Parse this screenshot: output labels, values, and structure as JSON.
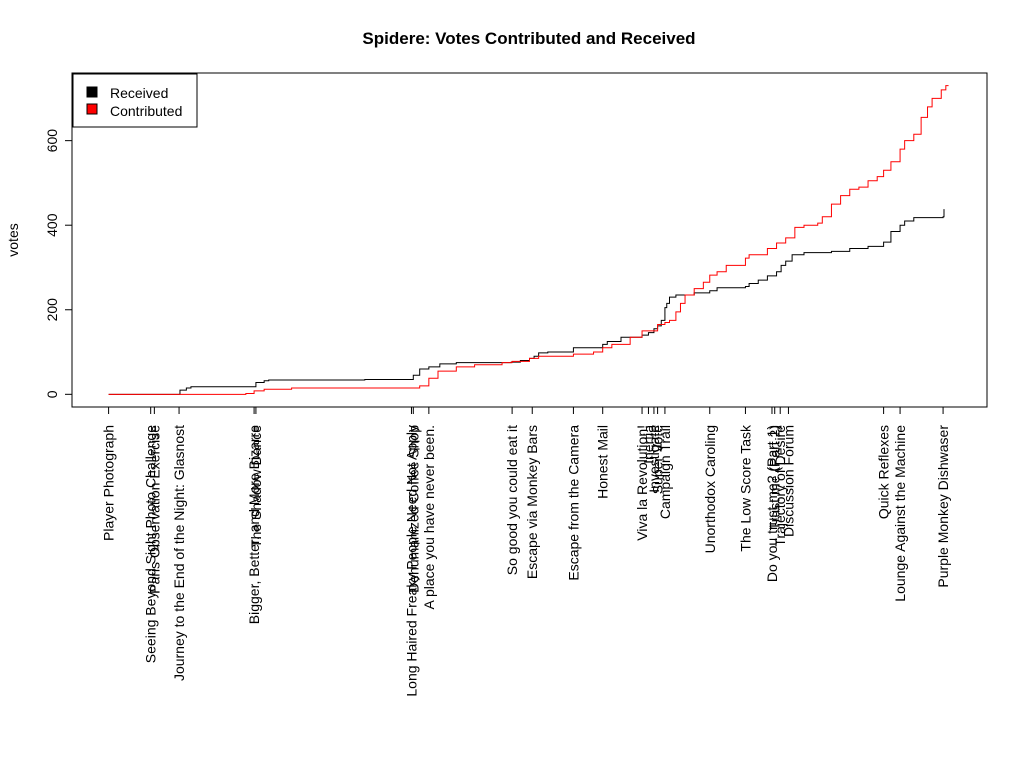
{
  "chart_data": {
    "type": "line",
    "title": "Spidere: Votes Contributed and Received",
    "xlabel": "",
    "ylabel": "votes",
    "ylim": [
      -30,
      760
    ],
    "xlim": [
      0,
      1000
    ],
    "yticks": [
      0,
      200,
      400,
      600
    ],
    "legend": {
      "position": "top-left",
      "entries": [
        {
          "label": "Received",
          "color": "#000000"
        },
        {
          "label": "Contributed",
          "color": "#ff0000"
        }
      ]
    },
    "x_ticks": [
      {
        "x": 40,
        "label": "Player Photograph"
      },
      {
        "x": 86,
        "label": "Seeing Beyond Sight Photo Challenge"
      },
      {
        "x": 90,
        "label": "Paris Observation Exercise"
      },
      {
        "x": 117,
        "label": "Journey to the End of the Night: Glasnost"
      },
      {
        "x": 199,
        "label": "Bigger, Better, and More Bizarre"
      },
      {
        "x": 201,
        "label": "The Shadow Dance"
      },
      {
        "x": 371,
        "label": "Long Haired Freaky People Need Not Apply"
      },
      {
        "x": 373,
        "label": "Dehumanized Coffee Shop"
      },
      {
        "x": 390,
        "label": "A place you have never been."
      },
      {
        "x": 481,
        "label": "So good you could eat it"
      },
      {
        "x": 503,
        "label": "Escape via Monkey Bars"
      },
      {
        "x": 548,
        "label": "Escape from the Camera"
      },
      {
        "x": 580,
        "label": "Honest Mail"
      },
      {
        "x": 623,
        "label": "Viva la Revolution!"
      },
      {
        "x": 630,
        "label": "Inertia"
      },
      {
        "x": 636,
        "label": "Investigate"
      },
      {
        "x": 640,
        "label": "Super Vote"
      },
      {
        "x": 648,
        "label": "Campaign Trail"
      },
      {
        "x": 697,
        "label": "Unorthodox Caroling"
      },
      {
        "x": 736,
        "label": "The Low Score Task"
      },
      {
        "x": 765,
        "label": "Do you trust me? (Part 1)"
      },
      {
        "x": 768,
        "label": "Trust me (Part 2)"
      },
      {
        "x": 774,
        "label": "Trajectory of Desire"
      },
      {
        "x": 783,
        "label": "Discussion Forum"
      },
      {
        "x": 887,
        "label": "Quick Reflexes"
      },
      {
        "x": 905,
        "label": "Lounge Against the Machine"
      },
      {
        "x": 952,
        "label": "Purple Monkey Dishwaser"
      }
    ],
    "series": [
      {
        "name": "Received",
        "color": "#000000",
        "points": [
          [
            40,
            0
          ],
          [
            86,
            0
          ],
          [
            117,
            0
          ],
          [
            118,
            10
          ],
          [
            125,
            15
          ],
          [
            130,
            18
          ],
          [
            199,
            18
          ],
          [
            201,
            28
          ],
          [
            210,
            32
          ],
          [
            215,
            34
          ],
          [
            320,
            35
          ],
          [
            371,
            35
          ],
          [
            373,
            45
          ],
          [
            380,
            60
          ],
          [
            390,
            65
          ],
          [
            402,
            72
          ],
          [
            420,
            75
          ],
          [
            480,
            76
          ],
          [
            490,
            80
          ],
          [
            500,
            85
          ],
          [
            505,
            90
          ],
          [
            510,
            98
          ],
          [
            520,
            100
          ],
          [
            548,
            110
          ],
          [
            580,
            118
          ],
          [
            585,
            125
          ],
          [
            600,
            135
          ],
          [
            623,
            140
          ],
          [
            630,
            146
          ],
          [
            636,
            155
          ],
          [
            640,
            162
          ],
          [
            644,
            175
          ],
          [
            648,
            205
          ],
          [
            650,
            215
          ],
          [
            653,
            230
          ],
          [
            660,
            235
          ],
          [
            680,
            240
          ],
          [
            697,
            245
          ],
          [
            705,
            252
          ],
          [
            736,
            255
          ],
          [
            740,
            262
          ],
          [
            750,
            270
          ],
          [
            760,
            280
          ],
          [
            770,
            290
          ],
          [
            775,
            305
          ],
          [
            780,
            315
          ],
          [
            787,
            330
          ],
          [
            800,
            335
          ],
          [
            830,
            338
          ],
          [
            850,
            345
          ],
          [
            870,
            350
          ],
          [
            887,
            360
          ],
          [
            895,
            385
          ],
          [
            905,
            400
          ],
          [
            910,
            410
          ],
          [
            920,
            418
          ],
          [
            952,
            420
          ],
          [
            953,
            438
          ]
        ]
      },
      {
        "name": "Contributed",
        "color": "#ff0000",
        "points": [
          [
            40,
            0
          ],
          [
            130,
            0
          ],
          [
            190,
            2
          ],
          [
            199,
            8
          ],
          [
            210,
            12
          ],
          [
            240,
            15
          ],
          [
            371,
            15
          ],
          [
            380,
            20
          ],
          [
            390,
            38
          ],
          [
            400,
            55
          ],
          [
            420,
            65
          ],
          [
            440,
            70
          ],
          [
            470,
            75
          ],
          [
            481,
            78
          ],
          [
            500,
            85
          ],
          [
            510,
            90
          ],
          [
            548,
            95
          ],
          [
            570,
            100
          ],
          [
            580,
            110
          ],
          [
            590,
            118
          ],
          [
            610,
            135
          ],
          [
            623,
            150
          ],
          [
            640,
            165
          ],
          [
            648,
            170
          ],
          [
            653,
            175
          ],
          [
            660,
            195
          ],
          [
            665,
            215
          ],
          [
            670,
            235
          ],
          [
            680,
            250
          ],
          [
            690,
            265
          ],
          [
            697,
            282
          ],
          [
            705,
            290
          ],
          [
            715,
            305
          ],
          [
            736,
            322
          ],
          [
            740,
            330
          ],
          [
            760,
            345
          ],
          [
            770,
            358
          ],
          [
            780,
            370
          ],
          [
            790,
            395
          ],
          [
            800,
            400
          ],
          [
            815,
            405
          ],
          [
            820,
            420
          ],
          [
            830,
            450
          ],
          [
            840,
            470
          ],
          [
            850,
            485
          ],
          [
            860,
            490
          ],
          [
            870,
            505
          ],
          [
            880,
            515
          ],
          [
            887,
            530
          ],
          [
            895,
            550
          ],
          [
            905,
            580
          ],
          [
            910,
            600
          ],
          [
            920,
            615
          ],
          [
            928,
            655
          ],
          [
            935,
            680
          ],
          [
            940,
            700
          ],
          [
            950,
            720
          ],
          [
            955,
            730
          ],
          [
            958,
            730
          ]
        ]
      }
    ]
  }
}
